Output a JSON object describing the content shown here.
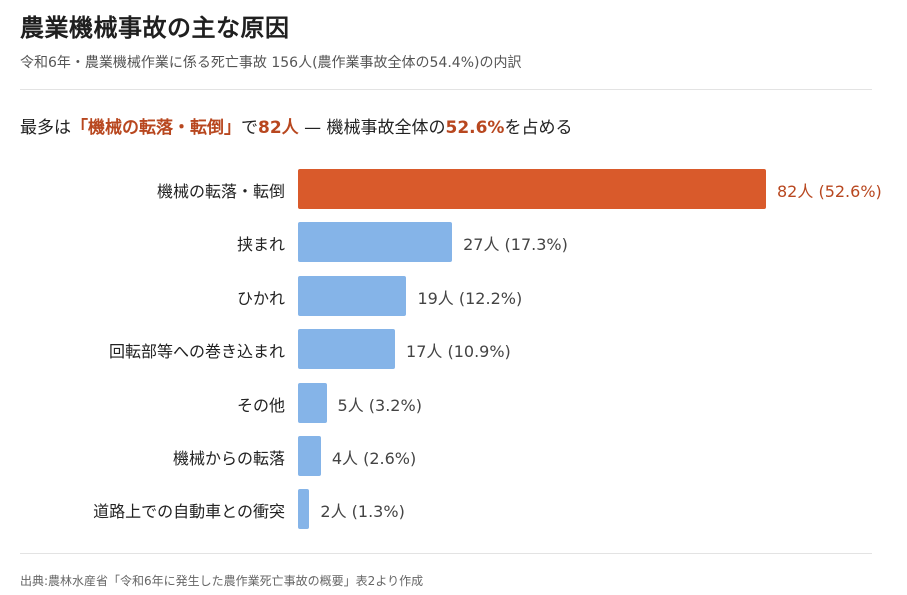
{
  "title": "農業機械事故の主な原因",
  "subtitle": "令和6年・農業機械作業に係る死亡事故 156人(農作業事故全体の54.4%)の内訳",
  "headline": {
    "prefix": "最多は",
    "highlight_cause": "「機械の転落・転倒」",
    "mid": "で",
    "highlight_count": "82人",
    "dash": " — 機械事故全体の",
    "highlight_pct": "52.6%",
    "suffix": "を占める"
  },
  "source": "出典:農林水産省「令和6年に発生した農作業死亡事故の概要」表2より作成",
  "colors": {
    "highlight_bar": "#d95a2b",
    "normal_bar": "#85b4e8",
    "highlight_text": "#b8471f"
  },
  "chart_data": {
    "type": "bar",
    "orientation": "horizontal",
    "categories": [
      "機械の転落・転倒",
      "挟まれ",
      "ひかれ",
      "回転部等への巻き込まれ",
      "その他",
      "機械からの転落",
      "道路上での自動車との衝突"
    ],
    "values": [
      82,
      27,
      19,
      17,
      5,
      4,
      2
    ],
    "value_labels": [
      "82人 (52.6%)",
      "27人 (17.3%)",
      "19人 (12.2%)",
      "17人 (10.9%)",
      "5人 (3.2%)",
      "4人 (2.6%)",
      "2人 (1.3%)"
    ],
    "highlight_index": 0,
    "xlim": [
      0,
      82
    ],
    "grid": false
  }
}
